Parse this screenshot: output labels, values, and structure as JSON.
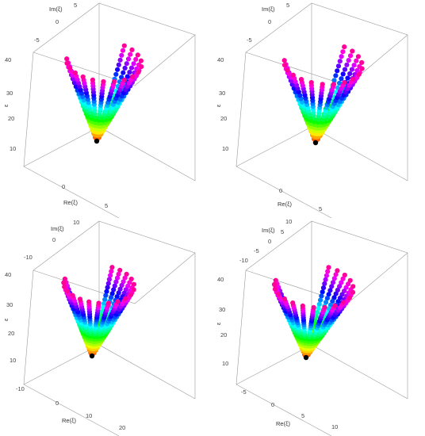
{
  "colors": {
    "box": "#9a9a9a",
    "focus_point": "#000000",
    "text": "#333333"
  },
  "chart_data": [
    {
      "type": "scatter",
      "projection": "3d",
      "xlabel": "Re(ξ)",
      "ylabel": "Im(ξ)",
      "zlabel": "ε",
      "x_ticks": [
        "0",
        "5"
      ],
      "y_ticks": [
        "5",
        "0",
        "-5"
      ],
      "z_ticks": [
        "40",
        "30",
        "20",
        "10"
      ],
      "xlim": [
        -5,
        8
      ],
      "ylim": [
        -8,
        6
      ],
      "zlim": [
        5,
        42
      ],
      "focus": {
        "x": 0,
        "y": 0,
        "z": 9
      },
      "rays": 16,
      "points_per_ray": 20,
      "ray_spread_deg": 210,
      "ray_gain": 0.24,
      "color_scale": "hue-by-radius"
    },
    {
      "type": "scatter",
      "projection": "3d",
      "xlabel": "Re(ξ)",
      "ylabel": "Im(ξ)",
      "zlabel": "ε",
      "x_ticks": [
        "0",
        "5"
      ],
      "y_ticks": [
        "5",
        "0",
        "-5"
      ],
      "z_ticks": [
        "40",
        "30",
        "20",
        "10"
      ],
      "xlim": [
        -5,
        8
      ],
      "ylim": [
        -8,
        6
      ],
      "zlim": [
        5,
        42
      ],
      "focus": {
        "x": 0,
        "y": 0,
        "z": 9
      },
      "rays": 16,
      "points_per_ray": 20,
      "ray_spread_deg": 210,
      "ray_gain": 0.25,
      "color_scale": "hue-by-radius"
    },
    {
      "type": "scatter",
      "projection": "3d",
      "xlabel": "Re(ξ)",
      "ylabel": "Im(ξ)",
      "zlabel": "ε",
      "x_ticks": [
        "-10",
        "0",
        "10",
        "20"
      ],
      "y_ticks": [
        "10",
        "0",
        "-10"
      ],
      "z_ticks": [
        "40",
        "30",
        "20",
        "10"
      ],
      "xlim": [
        -10,
        22
      ],
      "ylim": [
        -14,
        12
      ],
      "zlim": [
        5,
        42
      ],
      "focus": {
        "x": 0,
        "y": 0,
        "z": 12
      },
      "rays": 18,
      "points_per_ray": 22,
      "ray_spread_deg": 230,
      "ray_gain": 0.5,
      "color_scale": "hue-by-radius"
    },
    {
      "type": "scatter",
      "projection": "3d",
      "xlabel": "Re(ξ)",
      "ylabel": "Im(ξ)",
      "zlabel": "ε",
      "x_ticks": [
        "-5",
        "0",
        "5",
        "10"
      ],
      "y_ticks": [
        "10",
        "5",
        "0",
        "-5",
        "-10"
      ],
      "z_ticks": [
        "40",
        "30",
        "20",
        "10"
      ],
      "xlim": [
        -6,
        12
      ],
      "ylim": [
        -12,
        12
      ],
      "zlim": [
        5,
        42
      ],
      "focus": {
        "x": 0,
        "y": 0,
        "z": 12
      },
      "rays": 18,
      "points_per_ray": 22,
      "ray_spread_deg": 230,
      "ray_gain": 0.42,
      "color_scale": "hue-by-radius"
    }
  ]
}
